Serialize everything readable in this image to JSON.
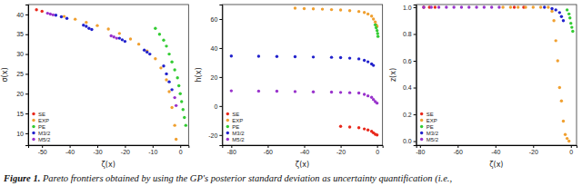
{
  "chart_data": [
    {
      "type": "scatter",
      "x_label": "ζ(x)",
      "y_label": "σ(x)",
      "xlim": [
        -55,
        3
      ],
      "xticks": [
        -50,
        -40,
        -30,
        -20,
        -10,
        0
      ],
      "ylim": [
        7,
        42.5
      ],
      "yticks": [
        10,
        15,
        20,
        25,
        30,
        35,
        40
      ],
      "legend": "lower left",
      "marker": "circle",
      "series": [
        {
          "name": "SE",
          "color": "#e8291c",
          "x": [
            -52,
            -50
          ],
          "values": [
            41.2,
            40.8
          ]
        },
        {
          "name": "EXP",
          "color": "#f0a030",
          "x": [
            -42,
            -38,
            -34,
            -30,
            -26,
            -22,
            -18,
            -15,
            -12,
            -9,
            -7,
            -5,
            -4,
            -3,
            -2,
            -1.5
          ],
          "values": [
            39.5,
            38.8,
            38,
            37.2,
            36.3,
            35.2,
            33.8,
            32.5,
            30.8,
            28.8,
            26.5,
            23.5,
            20.5,
            16.5,
            12,
            8.5
          ]
        },
        {
          "name": "PE",
          "color": "#33cc33",
          "x": [
            -9,
            -7.5,
            -6,
            -5,
            -4,
            -3,
            -2,
            -1,
            -0.5,
            0,
            0.5,
            1,
            1.5,
            2
          ],
          "values": [
            36.5,
            35,
            33.5,
            32,
            30,
            28,
            26,
            24,
            22,
            20,
            18,
            16,
            14,
            12
          ]
        },
        {
          "name": "M3/2",
          "color": "#2222cc",
          "x": [
            -45,
            -43,
            -41,
            -35,
            -34,
            -33,
            -32,
            -22,
            -21,
            -20,
            -13,
            -12,
            -11,
            -6,
            -5,
            -4,
            -3
          ],
          "values": [
            39.8,
            39.4,
            39,
            37.3,
            37,
            36.5,
            36.2,
            34,
            33.6,
            33.2,
            31,
            30.5,
            30,
            27,
            25,
            23,
            21
          ]
        },
        {
          "name": "M5/2",
          "color": "#9933cc",
          "x": [
            -48,
            -47,
            -46,
            -25,
            -24,
            -23,
            -2,
            -1.5
          ],
          "values": [
            40.3,
            40.1,
            39.9,
            34.6,
            34.3,
            34,
            19,
            17
          ]
        }
      ]
    },
    {
      "type": "scatter",
      "x_label": "ζ(x)",
      "y_label": "h(x)",
      "xlim": [
        -85,
        3
      ],
      "xticks": [
        -80,
        -60,
        -40,
        -20,
        0
      ],
      "ylim": [
        -27,
        70
      ],
      "yticks": [
        -20,
        0,
        20,
        40,
        60
      ],
      "legend": "lower left",
      "marker": "circle",
      "series": [
        {
          "name": "SE",
          "color": "#e8291c",
          "x": [
            -20,
            -15,
            -10,
            -7,
            -5,
            -3,
            -2,
            -1,
            0
          ],
          "values": [
            -14,
            -14.5,
            -15,
            -15.8,
            -16.5,
            -17.5,
            -18.5,
            -19.5,
            -20
          ]
        },
        {
          "name": "EXP",
          "color": "#f0a030",
          "x": [
            -45,
            -40,
            -35,
            -30,
            -25,
            -20,
            -15,
            -10,
            -7,
            -5,
            -3,
            -2,
            -1,
            -0.5,
            0
          ],
          "values": [
            67.5,
            67.2,
            67,
            66.8,
            66.5,
            66.2,
            65.8,
            65.2,
            64.5,
            63.5,
            62,
            60,
            58,
            56,
            55
          ]
        },
        {
          "name": "PE",
          "color": "#33cc33",
          "x": [
            -1,
            -0.5,
            0,
            0.3,
            0.5
          ],
          "values": [
            56,
            54,
            52,
            50,
            48
          ]
        },
        {
          "name": "M3/2",
          "color": "#2222cc",
          "x": [
            -80,
            -65,
            -55,
            -45,
            -35,
            -25,
            -20,
            -15,
            -10,
            -7,
            -5,
            -3,
            -2
          ],
          "values": [
            34.5,
            34.3,
            34.2,
            34,
            33.8,
            33.6,
            33.4,
            33,
            32.5,
            31.5,
            30.5,
            29,
            28
          ]
        },
        {
          "name": "M5/2",
          "color": "#9933cc",
          "x": [
            -80,
            -65,
            -55,
            -45,
            -35,
            -25,
            -20,
            -15,
            -10,
            -7,
            -5,
            -3,
            -2,
            -1,
            0
          ],
          "values": [
            10.5,
            10.3,
            10.2,
            10,
            9.8,
            9.6,
            9.4,
            9.2,
            9,
            8,
            7,
            6,
            4.5,
            3,
            2
          ]
        }
      ]
    },
    {
      "type": "scatter",
      "x_label": "ζ(x)",
      "y_label": "z(x)",
      "xlim": [
        -82,
        3
      ],
      "xticks": [
        -80,
        -60,
        -40,
        -20,
        0
      ],
      "ylim": [
        -0.03,
        1.02
      ],
      "yticks": [
        {
          "value": 0,
          "label": "0.0"
        },
        {
          "value": 0.2,
          "label": "0.2"
        },
        {
          "value": 0.4,
          "label": "0.4"
        },
        {
          "value": 0.6,
          "label": "0.6"
        },
        {
          "value": 0.8,
          "label": "0.8"
        },
        {
          "value": 1,
          "label": "1.0"
        }
      ],
      "legend": "lower left",
      "marker": "circle",
      "series": [
        {
          "name": "SE",
          "color": "#e8291c",
          "x": [
            -78,
            -75,
            -72,
            -30,
            -25
          ],
          "values": [
            1,
            1,
            1,
            1,
            1
          ]
        },
        {
          "name": "EXP",
          "color": "#f0a030",
          "x": [
            -36,
            -32,
            -28,
            -24,
            -20,
            -16,
            -12,
            -10,
            -9,
            -8,
            -7,
            -6,
            -5,
            -4,
            -3,
            -2,
            -1
          ],
          "values": [
            1,
            1,
            1,
            1,
            1,
            1,
            1,
            0.97,
            0.9,
            0.75,
            0.6,
            0.4,
            0.3,
            0.15,
            0.05,
            0.02,
            0
          ]
        },
        {
          "name": "PE",
          "color": "#33cc33",
          "x": [
            -2,
            -1,
            -0.5,
            0,
            0.5,
            1
          ],
          "values": [
            0.98,
            0.95,
            0.92,
            0.88,
            0.85,
            0.82
          ]
        },
        {
          "name": "M3/2",
          "color": "#2222cc",
          "x": [
            -14,
            -10,
            -8,
            -6,
            -5,
            -4
          ],
          "values": [
            1,
            0.99,
            0.98,
            0.96,
            0.93,
            0.9
          ]
        },
        {
          "name": "M5/2",
          "color": "#9933cc",
          "x": [
            -78,
            -74,
            -70,
            -66,
            -62,
            -58,
            -54,
            -50,
            -46,
            -42,
            -38
          ],
          "values": [
            1,
            1,
            1,
            1,
            1,
            1,
            1,
            1,
            1,
            1,
            1
          ]
        }
      ]
    }
  ],
  "caption": {
    "label": "Figure 1.",
    "text": " Pareto frontiers obtained by using the GP's posterior standard deviation as uncertainty quantification (i.e.,"
  }
}
